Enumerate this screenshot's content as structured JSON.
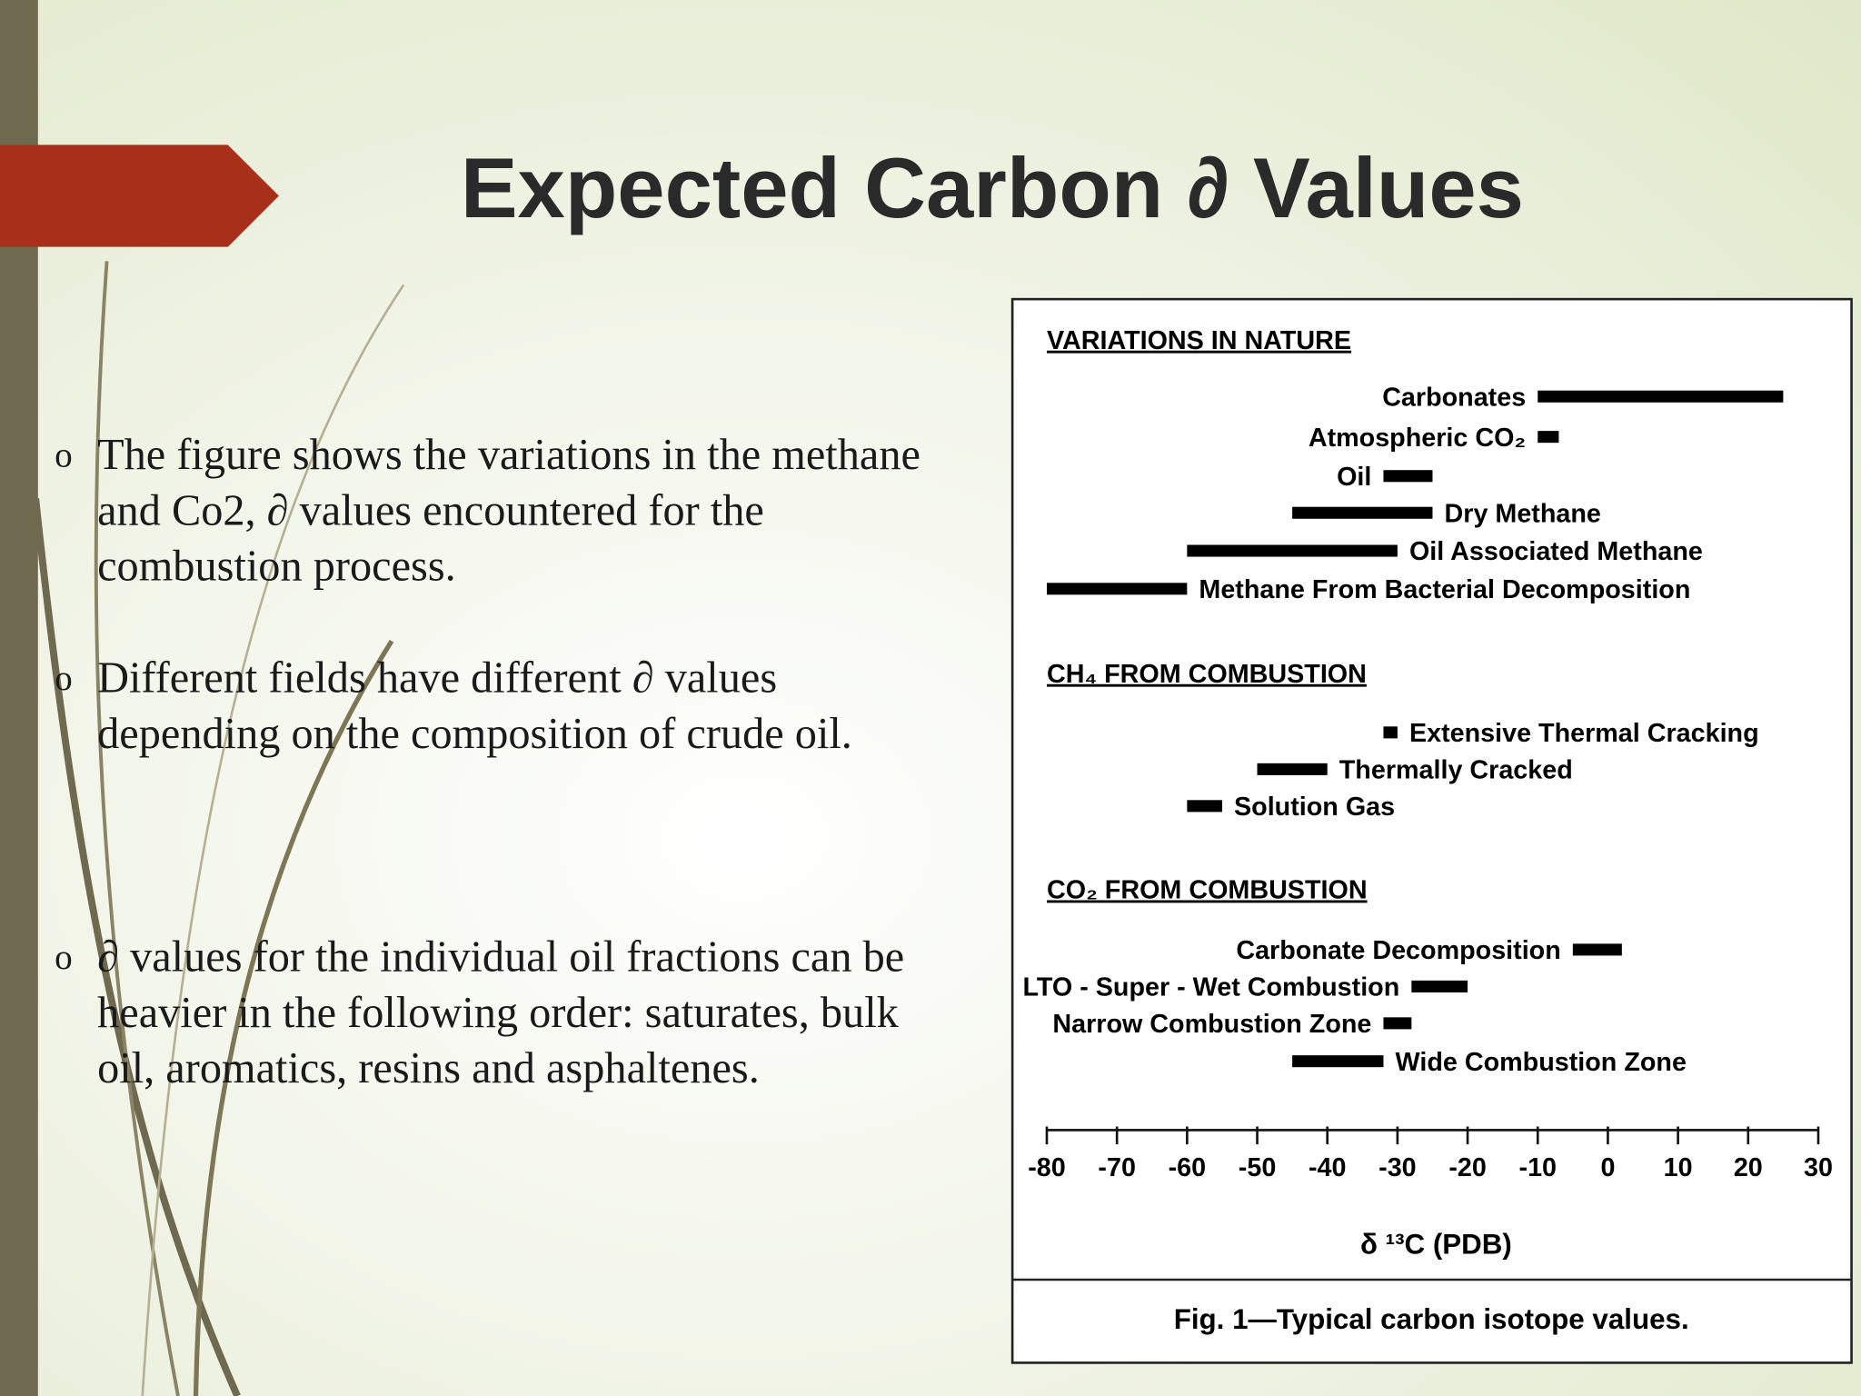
{
  "slide": {
    "title": "Expected Carbon ∂ Values",
    "bullets": [
      "The figure shows the variations in the methane and Co2, ∂ values encountered for the combustion process.",
      "Different fields have different ∂ values depending on the composition of crude oil.",
      "∂ values for the individual oil fractions can be heavier in the following order: saturates, bulk oil, aromatics, resins and asphaltenes."
    ]
  },
  "chart_data": {
    "type": "range-bar",
    "color": "#000000",
    "groups": [
      {
        "title": "VARIATIONS IN NATURE",
        "categories": [
          "Carbonates",
          "Atmospheric CO₂",
          "Oil",
          "Dry Methane",
          "Oil Associated Methane",
          "Methane From Bacterial Decomposition"
        ],
        "low": [
          -10,
          -10,
          -32,
          -45,
          -60,
          -80
        ],
        "high": [
          25,
          -7,
          -25,
          -25,
          -30,
          -60
        ]
      },
      {
        "title": "CH₄ FROM COMBUSTION",
        "categories": [
          "Extensive Thermal Cracking",
          "Thermally Cracked",
          "Solution Gas"
        ],
        "low": [
          -32,
          -50,
          -60
        ],
        "high": [
          -30,
          -40,
          -55
        ]
      },
      {
        "title": "CO₂ FROM COMBUSTION",
        "categories": [
          "Carbonate Decomposition",
          "LTO - Super - Wet Combustion",
          "Narrow Combustion Zone",
          "Wide Combustion Zone"
        ],
        "low": [
          -5,
          -28,
          -32,
          -45
        ],
        "high": [
          2,
          -20,
          -28,
          -32
        ]
      }
    ],
    "xlim": [
      -80,
      30
    ],
    "xticks": [
      -80,
      -70,
      -60,
      -50,
      -40,
      -30,
      -20,
      -10,
      0,
      10,
      20,
      30
    ],
    "xlabel": "δ ¹³C (PDB)",
    "caption": "Fig. 1—Typical carbon isotope values."
  }
}
